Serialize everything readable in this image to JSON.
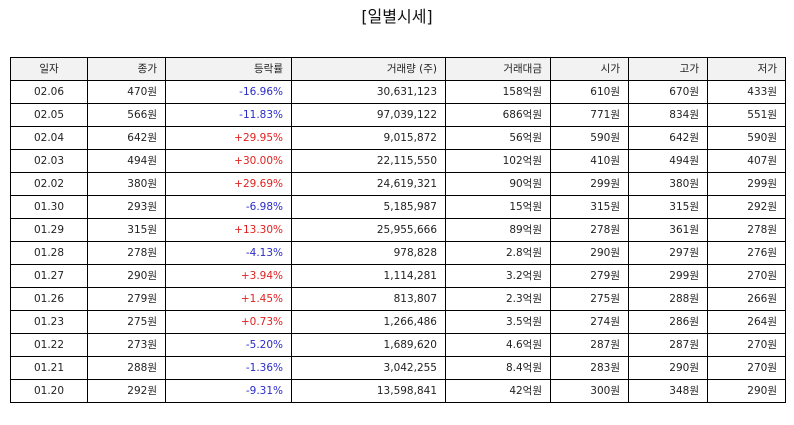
{
  "title": "[일별시세]",
  "colors": {
    "up": "#e02020",
    "down": "#2b2bc9"
  },
  "headers": {
    "date": "일자",
    "close": "종가",
    "change": "등락률",
    "volume": "거래량 (주)",
    "amount": "거래대금",
    "open": "시가",
    "high": "고가",
    "low": "저가"
  },
  "rows": [
    {
      "date": "02.06",
      "close": "470원",
      "change": "-16.96%",
      "dir": "down",
      "volume": "30,631,123",
      "amount": "158억원",
      "open": "610원",
      "high": "670원",
      "low": "433원"
    },
    {
      "date": "02.05",
      "close": "566원",
      "change": "-11.83%",
      "dir": "down",
      "volume": "97,039,122",
      "amount": "686억원",
      "open": "771원",
      "high": "834원",
      "low": "551원"
    },
    {
      "date": "02.04",
      "close": "642원",
      "change": "+29.95%",
      "dir": "up",
      "volume": "9,015,872",
      "amount": "56억원",
      "open": "590원",
      "high": "642원",
      "low": "590원"
    },
    {
      "date": "02.03",
      "close": "494원",
      "change": "+30.00%",
      "dir": "up",
      "volume": "22,115,550",
      "amount": "102억원",
      "open": "410원",
      "high": "494원",
      "low": "407원"
    },
    {
      "date": "02.02",
      "close": "380원",
      "change": "+29.69%",
      "dir": "up",
      "volume": "24,619,321",
      "amount": "90억원",
      "open": "299원",
      "high": "380원",
      "low": "299원"
    },
    {
      "date": "01.30",
      "close": "293원",
      "change": "-6.98%",
      "dir": "down",
      "volume": "5,185,987",
      "amount": "15억원",
      "open": "315원",
      "high": "315원",
      "low": "292원"
    },
    {
      "date": "01.29",
      "close": "315원",
      "change": "+13.30%",
      "dir": "up",
      "volume": "25,955,666",
      "amount": "89억원",
      "open": "278원",
      "high": "361원",
      "low": "278원"
    },
    {
      "date": "01.28",
      "close": "278원",
      "change": "-4.13%",
      "dir": "down",
      "volume": "978,828",
      "amount": "2.8억원",
      "open": "290원",
      "high": "297원",
      "low": "276원"
    },
    {
      "date": "01.27",
      "close": "290원",
      "change": "+3.94%",
      "dir": "up",
      "volume": "1,114,281",
      "amount": "3.2억원",
      "open": "279원",
      "high": "299원",
      "low": "270원"
    },
    {
      "date": "01.26",
      "close": "279원",
      "change": "+1.45%",
      "dir": "up",
      "volume": "813,807",
      "amount": "2.3억원",
      "open": "275원",
      "high": "288원",
      "low": "266원"
    },
    {
      "date": "01.23",
      "close": "275원",
      "change": "+0.73%",
      "dir": "up",
      "volume": "1,266,486",
      "amount": "3.5억원",
      "open": "274원",
      "high": "286원",
      "low": "264원"
    },
    {
      "date": "01.22",
      "close": "273원",
      "change": "-5.20%",
      "dir": "down",
      "volume": "1,689,620",
      "amount": "4.6억원",
      "open": "287원",
      "high": "287원",
      "low": "270원"
    },
    {
      "date": "01.21",
      "close": "288원",
      "change": "-1.36%",
      "dir": "down",
      "volume": "3,042,255",
      "amount": "8.4억원",
      "open": "283원",
      "high": "290원",
      "low": "270원"
    },
    {
      "date": "01.20",
      "close": "292원",
      "change": "-9.31%",
      "dir": "down",
      "volume": "13,598,841",
      "amount": "42억원",
      "open": "300원",
      "high": "348원",
      "low": "290원"
    }
  ]
}
